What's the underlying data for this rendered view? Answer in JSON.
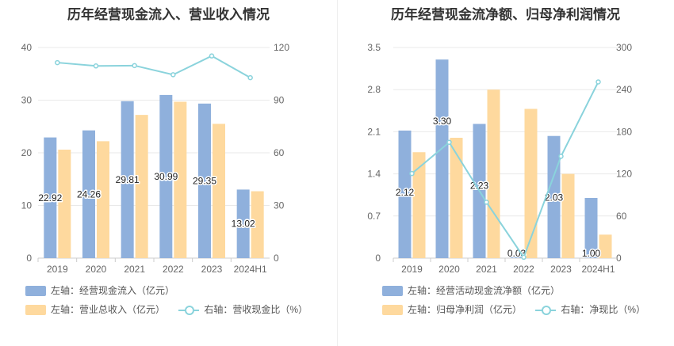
{
  "colors": {
    "bar_primary": "#8fb0dc",
    "bar_secondary": "#fed99e",
    "line": "#8ad3dc",
    "grid": "#e9e9e9"
  },
  "chart_data": [
    {
      "type": "bar",
      "title": "历年经营现金流入、营业收入情况",
      "categories": [
        "2019",
        "2020",
        "2021",
        "2022",
        "2023",
        "2024H1"
      ],
      "left_axis": {
        "ylim": [
          0,
          40
        ],
        "ticks": [
          "0",
          "10",
          "20",
          "30",
          "40"
        ]
      },
      "right_axis": {
        "ylim": [
          0,
          120
        ],
        "ticks": [
          "0",
          "30",
          "60",
          "90",
          "120"
        ]
      },
      "series": [
        {
          "name": "左轴：经营现金流入（亿元）",
          "axis": "left",
          "kind": "bar",
          "color": "#8fb0dc",
          "values": [
            22.92,
            24.26,
            29.81,
            30.99,
            29.35,
            13.02
          ],
          "labels": [
            "22.92",
            "24.26",
            "29.81",
            "30.99",
            "29.35",
            "13.02"
          ]
        },
        {
          "name": "左轴：营业总收入（亿元）",
          "axis": "left",
          "kind": "bar",
          "color": "#fed99e",
          "values": [
            20.6,
            22.2,
            27.2,
            29.7,
            25.5,
            12.7
          ]
        },
        {
          "name": "右轴：营收现金比（%）",
          "axis": "right",
          "kind": "line",
          "color": "#8ad3dc",
          "values": [
            111.4,
            109.5,
            109.7,
            104.5,
            115.2,
            102.8
          ]
        }
      ]
    },
    {
      "type": "bar",
      "title": "历年经营现金流净额、归母净利润情况",
      "categories": [
        "2019",
        "2020",
        "2021",
        "2022",
        "2023",
        "2024H1"
      ],
      "left_axis": {
        "ylim": [
          0,
          3.5
        ],
        "ticks": [
          "0",
          "0.7",
          "1.4",
          "2.1",
          "2.8",
          "3.5"
        ]
      },
      "right_axis": {
        "ylim": [
          0,
          300
        ],
        "ticks": [
          "0",
          "60",
          "120",
          "180",
          "240",
          "300"
        ]
      },
      "series": [
        {
          "name": "左轴：经营活动现金流净额（亿元）",
          "axis": "left",
          "kind": "bar",
          "color": "#8fb0dc",
          "values": [
            2.12,
            3.3,
            2.23,
            0.03,
            2.03,
            1.0
          ],
          "labels": [
            "2.12",
            "3.30",
            "2.23",
            "0.03",
            "2.03",
            "1.00"
          ]
        },
        {
          "name": "左轴：归母净利润（亿元）",
          "axis": "left",
          "kind": "bar",
          "color": "#fed99e",
          "values": [
            1.76,
            2.0,
            2.8,
            2.48,
            1.4,
            0.39
          ]
        },
        {
          "name": "右轴：净现比（%）",
          "axis": "right",
          "kind": "line",
          "color": "#8ad3dc",
          "values": [
            120.5,
            165.0,
            79.6,
            1.2,
            145.0,
            251.0
          ]
        }
      ]
    }
  ]
}
